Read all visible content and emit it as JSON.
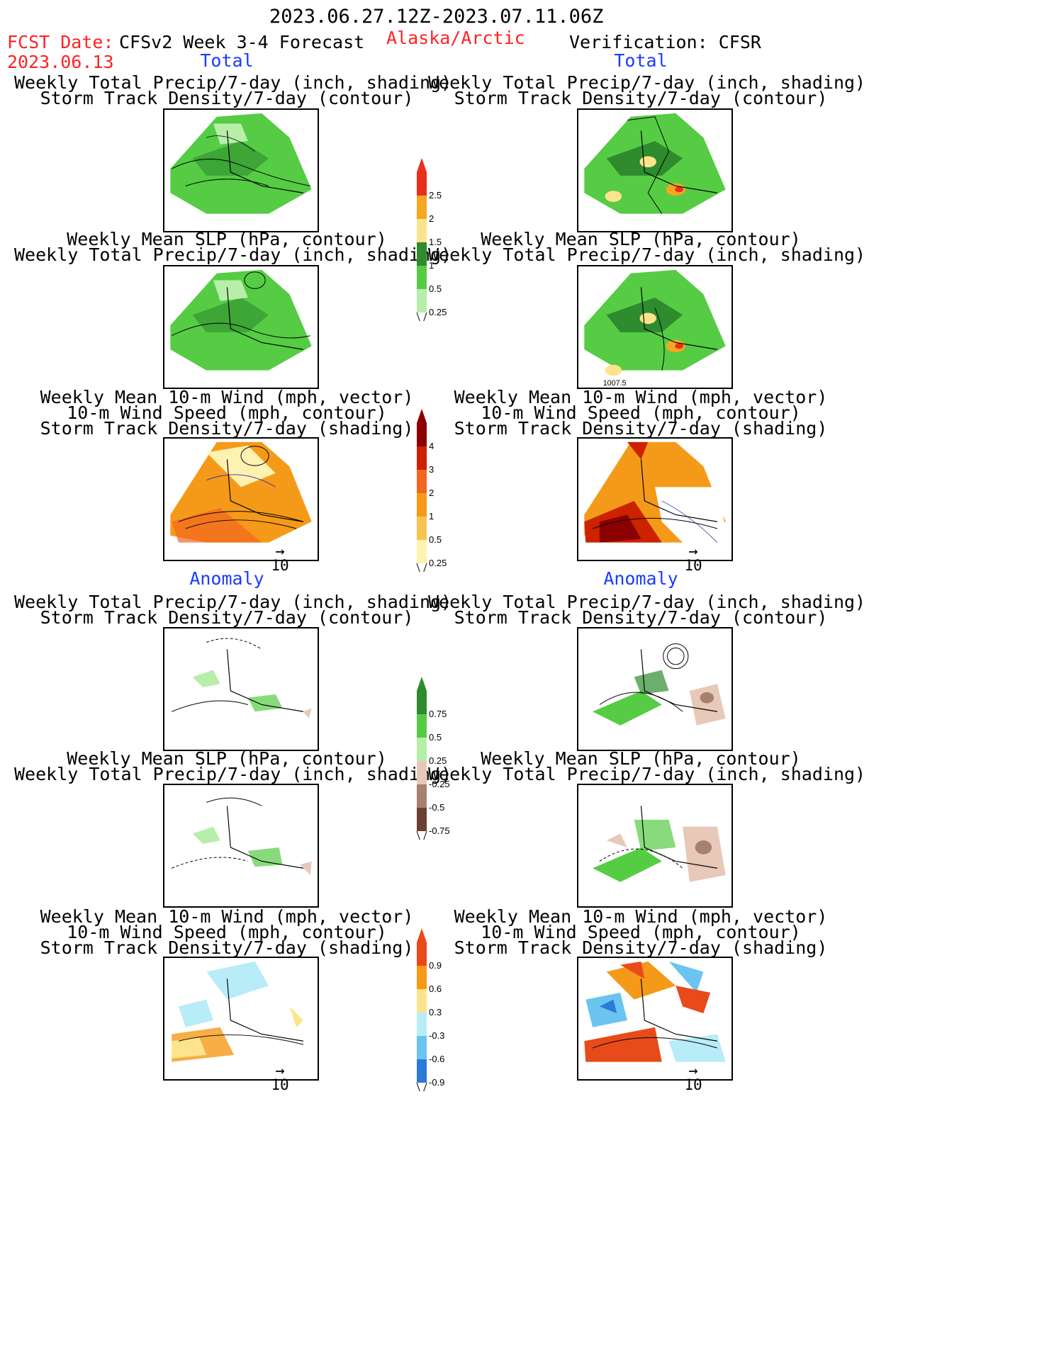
{
  "header": {
    "period": "2023.06.27.12Z-2023.07.11.06Z",
    "fcst_label": "FCST Date:",
    "fcst_date": "2023.06.13",
    "model": "CFSv2 Week 3-4 Forecast",
    "region": "Alaska/Arctic",
    "verification": "Verification: CFSR"
  },
  "sections": {
    "total": "Total",
    "anomaly": "Anomaly"
  },
  "titles": {
    "precip_storm_1": "Weekly Total Precip/7-day (inch, shading)",
    "precip_storm_2": "Storm Track Density/7-day (contour)",
    "slp_1": "Weekly Mean SLP (hPa, contour)",
    "slp_2": "Weekly Total Precip/7-day (inch, shading)",
    "wind_1": "Weekly Mean 10-m Wind (mph, vector)",
    "wind_2": "10-m Wind Speed (mph, contour)",
    "wind_3": "Storm Track Density/7-day (shading)"
  },
  "vector_ref": "10",
  "slp_contour_label": "1007.5",
  "colorbars": {
    "precip_total": {
      "labels": [
        "2.5",
        "2",
        "1.5",
        "1",
        "0.5",
        "0.25"
      ],
      "colors": [
        "#e8301a",
        "#f5a623",
        "#fde48c",
        "#2e8b2e",
        "#55cc44",
        "#b7eeaa"
      ]
    },
    "storm_total": {
      "labels": [
        "4",
        "3",
        "2",
        "1",
        "0.5",
        "0.25"
      ],
      "colors": [
        "#8b0000",
        "#cc2200",
        "#f2661f",
        "#f59a18",
        "#f7c450",
        "#fff2b0"
      ]
    },
    "precip_anom": {
      "labels": [
        "0.75",
        "0.5",
        "0.25",
        "-0.25",
        "-0.5",
        "-0.75"
      ],
      "colors": [
        "#2e8b2e",
        "#55cc44",
        "#b7eeaa",
        "#e8c8b8",
        "#a88070",
        "#6b4030"
      ]
    },
    "storm_anom": {
      "labels": [
        "0.9",
        "0.6",
        "0.3",
        "-0.3",
        "-0.6",
        "-0.9"
      ],
      "colors": [
        "#e84a1a",
        "#f59a18",
        "#fde48c",
        "#b8ecf8",
        "#6bc4f0",
        "#2a7ad8"
      ]
    }
  }
}
